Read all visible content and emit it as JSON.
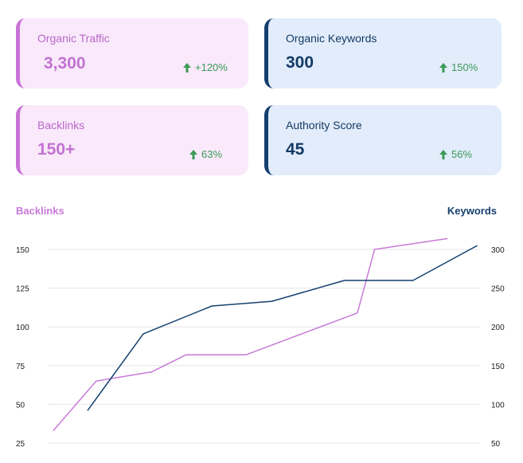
{
  "cards": [
    {
      "title": "Organic Traffic",
      "value": "3,300",
      "change": "+120%",
      "theme": "pink"
    },
    {
      "title": "Organic Keywords",
      "value": "300",
      "change": "150%",
      "theme": "blue"
    },
    {
      "title": "Backlinks",
      "value": "150+",
      "change": "63%",
      "theme": "pink"
    },
    {
      "title": "Authority Score",
      "value": "45",
      "change": "56%",
      "theme": "blue"
    }
  ],
  "icons": {
    "change": "arrow-up-icon"
  },
  "colors": {
    "pink": "#c87ad8",
    "navy": "#143f6e",
    "up": "#3a9a57",
    "grid": "#e6e6ea"
  },
  "chart_data": {
    "type": "line",
    "left_axis_title": "Backlinks",
    "right_axis_title": "Keywords",
    "left_ticks": [
      "150",
      "125",
      "100",
      "75",
      "50",
      "25"
    ],
    "right_ticks": [
      "300",
      "250",
      "200",
      "150",
      "100",
      "50"
    ],
    "ylim_left": [
      25,
      150
    ],
    "ylim_right": [
      50,
      300
    ],
    "grid": true,
    "series": [
      {
        "name": "Backlinks",
        "axis": "left",
        "color": "#c87ad8",
        "x": [
          0.0,
          0.1,
          0.23,
          0.31,
          0.45,
          0.71,
          0.75,
          0.92
        ],
        "y": [
          33,
          65,
          71,
          82,
          82,
          109,
          150,
          157
        ]
      },
      {
        "name": "Keywords",
        "axis": "right",
        "color": "#143f6e",
        "x": [
          0.08,
          0.21,
          0.37,
          0.51,
          0.68,
          0.84,
          0.99
        ],
        "y": [
          92,
          191,
          227,
          233,
          260,
          260,
          305
        ]
      }
    ]
  }
}
